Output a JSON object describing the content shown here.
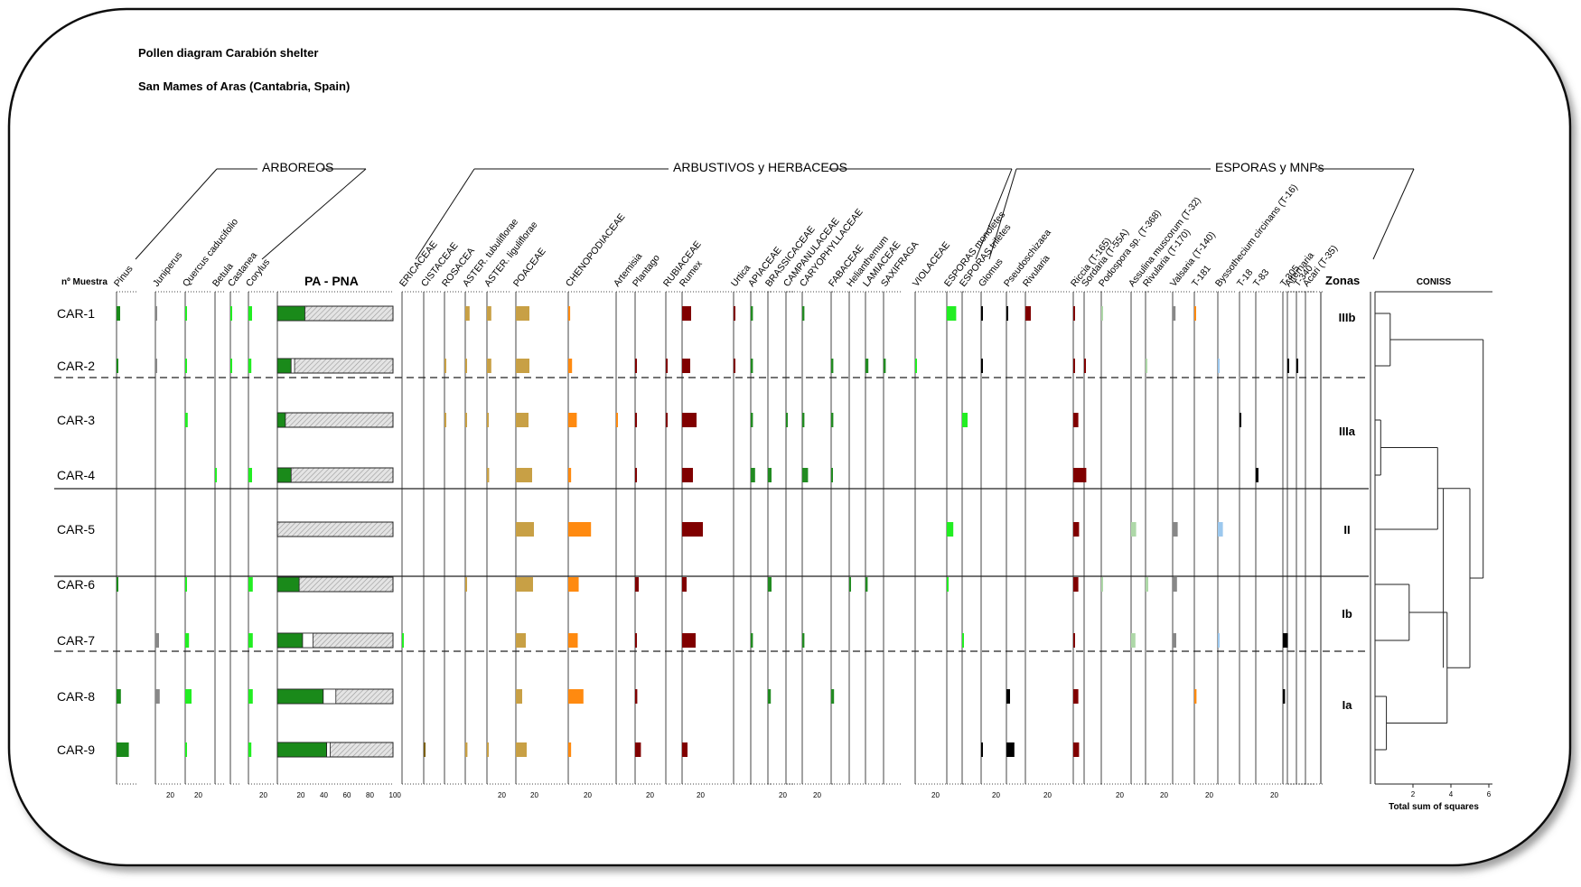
{
  "header": {
    "title": "Pollen diagram Carabión shelter",
    "subtitle": "San Mames of Aras (Cantabria, Spain)"
  },
  "groups": [
    "ARBOREOS",
    "ARBUSTIVOS y HERBACEOS",
    "ESPORAS y MNPs"
  ],
  "row_header": "nº Muestra",
  "zones_header": "Zonas",
  "coniss": {
    "title": "CONISS",
    "xlabel": "Total sum of squares",
    "ticks": [
      "2",
      "4",
      "6"
    ]
  },
  "samples": [
    "CAR-1",
    "CAR-2",
    "CAR-3",
    "CAR-4",
    "CAR-5",
    "CAR-6",
    "CAR-7",
    "CAR-8",
    "CAR-9"
  ],
  "zones": [
    {
      "label": "IIIb"
    },
    {
      "label": "IIIa"
    },
    {
      "label": "II"
    },
    {
      "label": "Ib"
    },
    {
      "label": "Ia"
    }
  ],
  "colors": {
    "arboreal_dark": "#1a8a1a",
    "arboreal_light": "#22ee22",
    "shrub_tan": "#c8a045",
    "shrub_orange": "#ff8a10",
    "herb_maroon": "#800000",
    "herb_green": "#228b22",
    "spore_green": "#22ee22",
    "npp_gray": "#888888",
    "npp_light_green": "#aed8a8",
    "npp_blue": "#9cc8ee",
    "black": "#000000",
    "pa_hatch": "#d8d8d8"
  },
  "chart_data": {
    "type": "bar",
    "title": "Pollen diagram Carabión shelter",
    "subtitle": "San Mames of Aras (Cantabria, Spain)",
    "categories": [
      "CAR-1",
      "CAR-2",
      "CAR-3",
      "CAR-4",
      "CAR-5",
      "CAR-6",
      "CAR-7",
      "CAR-8",
      "CAR-9"
    ],
    "orientation": "horizontal",
    "series": [
      {
        "name": "Pinus",
        "color": "#1a8a1a",
        "values": [
          5,
          1,
          0,
          0,
          0,
          2,
          0,
          6,
          17
        ]
      },
      {
        "name": "Juniperus",
        "color": "#888888",
        "values": [
          2,
          1,
          0,
          0,
          0,
          0,
          5,
          6,
          0
        ]
      },
      {
        "name": "Quercus caducifolio",
        "color": "#22ee22",
        "values": [
          2,
          1,
          4,
          0,
          0,
          2,
          6,
          10,
          2
        ]
      },
      {
        "name": "Betula",
        "color": "#22ee22",
        "values": [
          0,
          0,
          0,
          1,
          0,
          0,
          0,
          0,
          0
        ]
      },
      {
        "name": "Castanea",
        "color": "#22ee22",
        "values": [
          2,
          1,
          0,
          0,
          0,
          0,
          0,
          0,
          0
        ]
      },
      {
        "name": "Corylus",
        "color": "#22ee22",
        "values": [
          5,
          4,
          0,
          5,
          0,
          6,
          6,
          6,
          4
        ]
      },
      {
        "name": "PA - PNA",
        "color": "#1a8a1a",
        "values": [
          24,
          12,
          7,
          12,
          0,
          19,
          22,
          40,
          43
        ],
        "values_b": [
          0,
          3,
          0,
          0,
          0,
          0,
          9,
          11,
          3
        ]
      },
      {
        "name": "ERICACEAE",
        "color": "#22ee22",
        "values": [
          0,
          0,
          0,
          0,
          0,
          0,
          2,
          0,
          0
        ]
      },
      {
        "name": "CISTACEAE",
        "color": "#7a6010",
        "values": [
          0,
          0,
          0,
          0,
          0,
          0,
          0,
          0,
          2
        ]
      },
      {
        "name": "ROSACEA",
        "color": "#c8a045",
        "values": [
          0,
          2,
          2,
          0,
          0,
          0,
          0,
          0,
          0
        ]
      },
      {
        "name": "ASTER. tubuliflorae",
        "color": "#c8a045",
        "values": [
          6,
          2,
          2,
          0,
          0,
          2,
          0,
          0,
          3
        ]
      },
      {
        "name": "ASTER. liguliflorae",
        "color": "#c8a045",
        "values": [
          6,
          6,
          2,
          3,
          0,
          0,
          0,
          0,
          2
        ]
      },
      {
        "name": "POACEAE",
        "color": "#c8a045",
        "values": [
          15,
          15,
          14,
          18,
          20,
          19,
          11,
          7,
          12
        ]
      },
      {
        "name": "CHENOPODIACEAE",
        "color": "#ff8a10",
        "values": [
          2,
          4,
          9,
          3,
          24,
          11,
          10,
          16,
          3
        ]
      },
      {
        "name": "Artemisia",
        "color": "#ff8a10",
        "values": [
          0,
          0,
          2,
          0,
          0,
          0,
          0,
          0,
          0
        ]
      },
      {
        "name": "Plantago",
        "color": "#800000",
        "values": [
          0,
          1,
          2,
          2,
          0,
          5,
          2,
          3,
          8
        ]
      },
      {
        "name": "RUBIACEAE",
        "color": "#800000",
        "values": [
          0,
          2,
          2,
          0,
          0,
          0,
          0,
          0,
          0
        ]
      },
      {
        "name": "Rumex",
        "color": "#800000",
        "values": [
          10,
          9,
          16,
          12,
          23,
          5,
          15,
          0,
          6
        ]
      },
      {
        "name": "Urtica",
        "color": "#800000",
        "values": [
          2,
          2,
          0,
          0,
          0,
          0,
          0,
          0,
          0
        ]
      },
      {
        "name": "APIACEAE",
        "color": "#228b22",
        "values": [
          3,
          3,
          3,
          6,
          0,
          0,
          3,
          0,
          0
        ]
      },
      {
        "name": "BRASSICACEAE",
        "color": "#228b22",
        "values": [
          0,
          0,
          0,
          5,
          0,
          5,
          0,
          4,
          0
        ]
      },
      {
        "name": "CAMPANULACEAE",
        "color": "#228b22",
        "values": [
          0,
          0,
          2,
          0,
          0,
          0,
          0,
          0,
          0
        ]
      },
      {
        "name": "CARYOPHYLLACEAE",
        "color": "#228b22",
        "values": [
          3,
          0,
          3,
          8,
          0,
          0,
          3,
          0,
          0
        ]
      },
      {
        "name": "FABACEAE",
        "color": "#228b22",
        "values": [
          0,
          3,
          3,
          2,
          0,
          0,
          0,
          4,
          0
        ]
      },
      {
        "name": "Helianthemum",
        "color": "#228b22",
        "values": [
          0,
          0,
          0,
          0,
          0,
          2,
          0,
          0,
          0
        ]
      },
      {
        "name": "LAMIACEAE",
        "color": "#228b22",
        "values": [
          0,
          4,
          0,
          0,
          0,
          3,
          0,
          0,
          0
        ]
      },
      {
        "name": "SAXIFRAGA",
        "color": "#228b22",
        "values": [
          0,
          3,
          0,
          0,
          0,
          0,
          0,
          0,
          0
        ]
      },
      {
        "name": "VIOLACEAE",
        "color": "#22ee22",
        "values": [
          0,
          1,
          0,
          0,
          0,
          0,
          0,
          0,
          0
        ]
      },
      {
        "name": "ESPORAS monoletes",
        "color": "#22ee22",
        "values": [
          13,
          0,
          0,
          0,
          9,
          2,
          0,
          0,
          0
        ]
      },
      {
        "name": "ESPORAS triletes",
        "color": "#22ee22",
        "values": [
          0,
          0,
          6,
          0,
          0,
          0,
          2,
          0,
          0
        ]
      },
      {
        "name": "Glomus",
        "color": "#000000",
        "values": [
          2,
          2,
          0,
          0,
          0,
          0,
          0,
          0,
          2
        ]
      },
      {
        "name": "Pseudoschizaea",
        "color": "#000000",
        "values": [
          2,
          0,
          0,
          0,
          0,
          0,
          0,
          5,
          11
        ]
      },
      {
        "name": "Rivularia",
        "color": "#800000",
        "values": [
          5,
          0,
          0,
          0,
          0,
          0,
          0,
          0,
          0
        ]
      },
      {
        "name": "Riccia (T-165)",
        "color": "#800000",
        "values": [
          1,
          2,
          7,
          18,
          8,
          7,
          2,
          7,
          8
        ]
      },
      {
        "name": "Sordaria (T-55A)",
        "color": "#800000",
        "values": [
          0,
          2,
          0,
          0,
          0,
          0,
          0,
          0,
          0
        ]
      },
      {
        "name": "Podospora sp. (T-368)",
        "color": "#aed8a8",
        "values": [
          1,
          0,
          0,
          0,
          0,
          1,
          0,
          0,
          0
        ]
      },
      {
        "name": "Assulina muscorum (T-32)",
        "color": "#aed8a8",
        "values": [
          0,
          0,
          0,
          0,
          7,
          0,
          6,
          0,
          0
        ]
      },
      {
        "name": "Rivularia (T-170)",
        "color": "#aed8a8",
        "values": [
          0,
          1,
          0,
          0,
          0,
          3,
          0,
          0,
          0
        ]
      },
      {
        "name": "Valsaria (T-140)",
        "color": "#888888",
        "values": [
          4,
          0,
          0,
          0,
          7,
          6,
          5,
          0,
          0
        ]
      },
      {
        "name": "T-181",
        "color": "#ff8a10",
        "values": [
          2,
          0,
          0,
          0,
          0,
          0,
          0,
          3,
          0
        ]
      },
      {
        "name": "Byssothecium circinans (T-16)",
        "color": "#9cc8ee",
        "values": [
          0,
          1,
          0,
          0,
          7,
          0,
          1,
          0,
          0
        ]
      },
      {
        "name": "T-18",
        "color": "#000000",
        "values": [
          0,
          0,
          1,
          0,
          0,
          0,
          0,
          0,
          0
        ]
      },
      {
        "name": "T-83",
        "color": "#000000",
        "values": [
          0,
          0,
          0,
          3,
          0,
          0,
          0,
          0,
          0
        ]
      },
      {
        "name": "T-305",
        "color": "#000000",
        "values": [
          0,
          0,
          0,
          0,
          0,
          0,
          7,
          3,
          0
        ]
      },
      {
        "name": "T-340",
        "color": "#000000",
        "values": [
          0,
          2,
          0,
          0,
          0,
          0,
          0,
          0,
          0
        ]
      },
      {
        "name": "Alternaria",
        "color": "#000000",
        "values": [
          0,
          1,
          0,
          0,
          0,
          0,
          0,
          0,
          0
        ]
      },
      {
        "name": "Acari (T-35)",
        "color": "#000000",
        "values": [
          0,
          0,
          0,
          0,
          0,
          0,
          0,
          0,
          0
        ]
      }
    ],
    "tick_labels": [
      "20",
      "40",
      "60",
      "80",
      "100"
    ],
    "xlabel": "",
    "ylabel": "nº Muestra",
    "zones": [
      {
        "label": "IIIb",
        "samples": [
          "CAR-1",
          "CAR-2"
        ]
      },
      {
        "label": "IIIa",
        "samples": [
          "CAR-3",
          "CAR-4"
        ]
      },
      {
        "label": "II",
        "samples": [
          "CAR-5"
        ]
      },
      {
        "label": "Ib",
        "samples": [
          "CAR-6",
          "CAR-7"
        ]
      },
      {
        "label": "Ia",
        "samples": [
          "CAR-8",
          "CAR-9"
        ]
      }
    ],
    "coniss_xlim": [
      0,
      6
    ],
    "grid": false
  }
}
